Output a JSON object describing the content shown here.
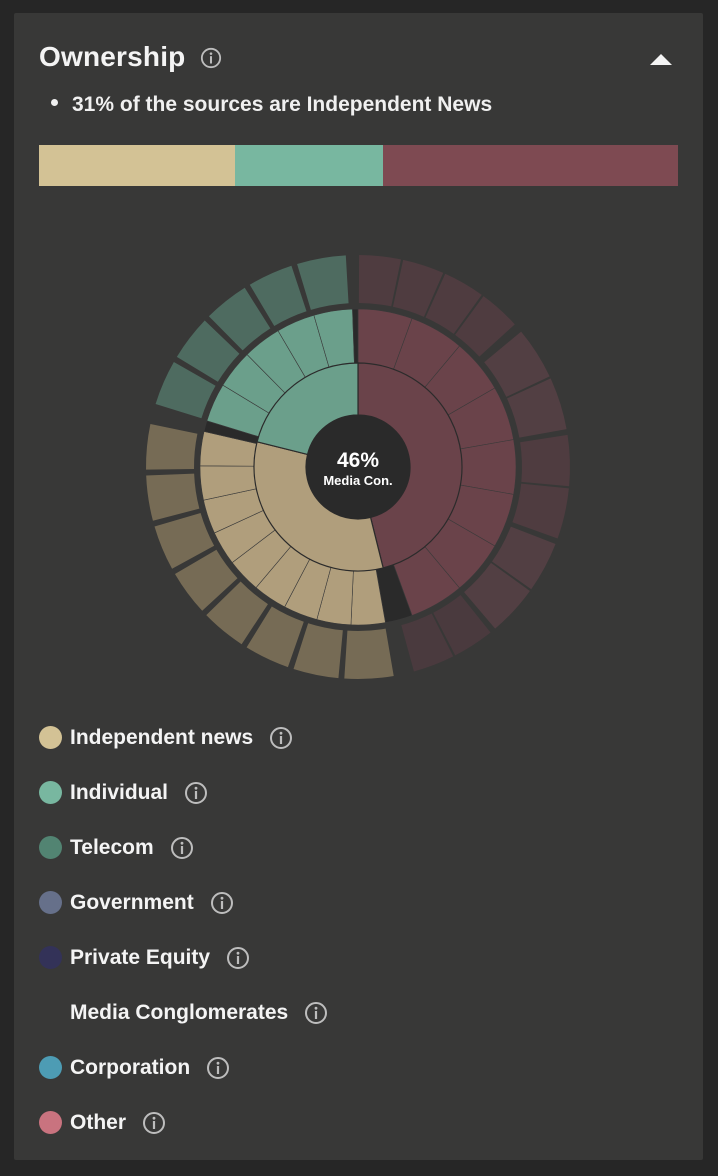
{
  "header": {
    "title": "Ownership",
    "collapse_icon": "chevron-up-icon"
  },
  "summary": {
    "text": "31% of the sources are Independent News"
  },
  "stack_bar": {
    "segments": [
      {
        "label": "Independent news",
        "fraction": 0.306,
        "color": "#d3c295"
      },
      {
        "label": "Individual",
        "fraction": 0.232,
        "color": "#78b7a0"
      },
      {
        "label": "Media Conglomerates",
        "fraction": 0.462,
        "color": "#7e4a52"
      }
    ]
  },
  "sunburst": {
    "center_value": "46%",
    "center_label": "Media Con.",
    "inner_ring": [
      {
        "category": "Media Conglomerates",
        "fraction": 0.46,
        "color": "#6a434a"
      },
      {
        "category": "Independent news",
        "fraction": 0.31,
        "color": "#b09e7c"
      },
      {
        "category": "Individual",
        "fraction": 0.23,
        "color": "#6b9f8b"
      }
    ]
  },
  "legend": [
    {
      "label": "Independent news",
      "color": "#d3c295"
    },
    {
      "label": "Individual",
      "color": "#78b7a0"
    },
    {
      "label": "Telecom",
      "color": "#528472"
    },
    {
      "label": "Government",
      "color": "#66708a"
    },
    {
      "label": "Private Equity",
      "color": "#333258"
    },
    {
      "label": "Media Conglomerates",
      "color": ""
    },
    {
      "label": "Corporation",
      "color": "#4d9cb4"
    },
    {
      "label": "Other",
      "color": "#c9737f"
    }
  ]
}
